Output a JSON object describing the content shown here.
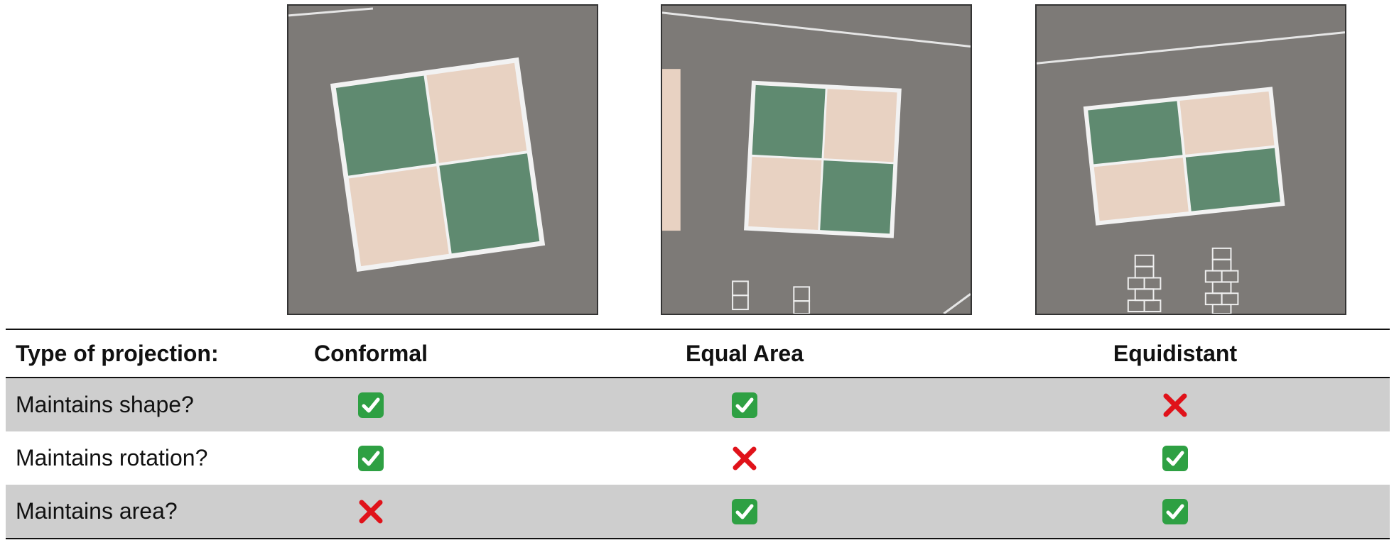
{
  "table": {
    "header": {
      "label": "Type of projection:",
      "columns": [
        "Conformal",
        "Equal Area",
        "Equidistant"
      ]
    },
    "rows": [
      {
        "label": "Maintains shape?",
        "values": [
          "check",
          "check",
          "cross"
        ]
      },
      {
        "label": "Maintains rotation?",
        "values": [
          "check",
          "cross",
          "check"
        ]
      },
      {
        "label": "Maintains area?",
        "values": [
          "cross",
          "check",
          "check"
        ]
      }
    ]
  },
  "colors": {
    "check_bg": "#2ea043",
    "cross": "#e0121a",
    "row_shade": "#cecece",
    "asphalt": "#7d7a77",
    "tile_green": "#5f8a70",
    "tile_beige": "#e8d2c2",
    "marking": "#eeeeee"
  }
}
